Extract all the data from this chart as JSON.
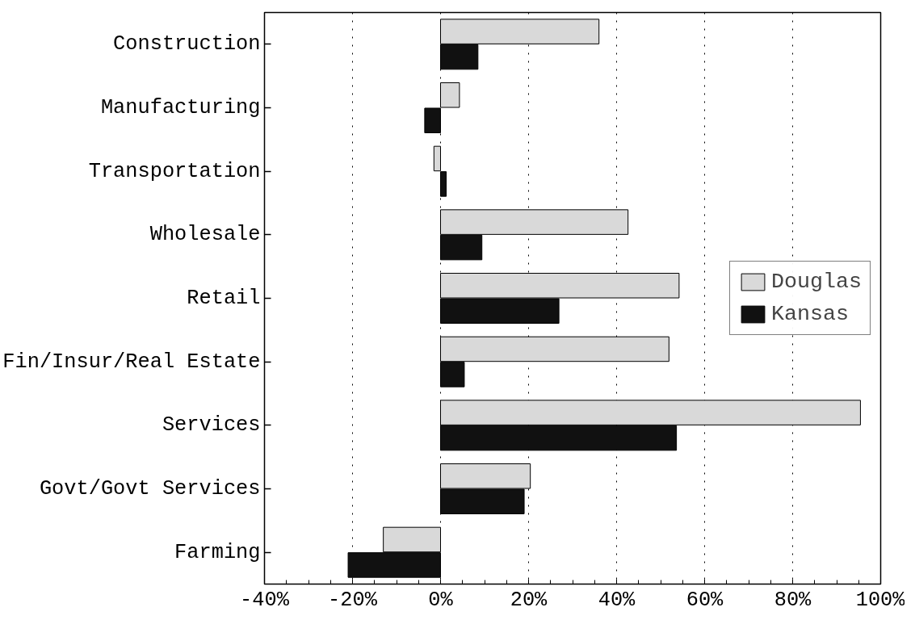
{
  "chart_data": {
    "type": "bar",
    "orientation": "horizontal",
    "categories": [
      "Construction",
      "Manufacturing",
      "Transportation",
      "Wholesale",
      "Retail",
      "Fin/Insur/Real Estate",
      "Services",
      "Govt/Govt Services",
      "Farming"
    ],
    "series": [
      {
        "name": "Douglas",
        "color": "#d9d9d9",
        "values": [
          36,
          4.3,
          -1.5,
          42.6,
          54.2,
          51.9,
          95.4,
          20.4,
          -13
        ]
      },
      {
        "name": "Kansas",
        "color": "#111111",
        "values": [
          8.5,
          -3.6,
          1.3,
          9.4,
          26.9,
          5.4,
          53.6,
          19,
          -21
        ]
      }
    ],
    "xlim": [
      -40,
      100
    ],
    "xticks": [
      {
        "value": -40,
        "label": "-40%"
      },
      {
        "value": -20,
        "label": "-20%"
      },
      {
        "value": 0,
        "label": "0%"
      },
      {
        "value": 20,
        "label": "20%"
      },
      {
        "value": 40,
        "label": "40%"
      },
      {
        "value": 60,
        "label": "60%"
      },
      {
        "value": 80,
        "label": "80%"
      },
      {
        "value": 100,
        "label": "100%"
      }
    ],
    "grid": "x",
    "legend": "right"
  }
}
